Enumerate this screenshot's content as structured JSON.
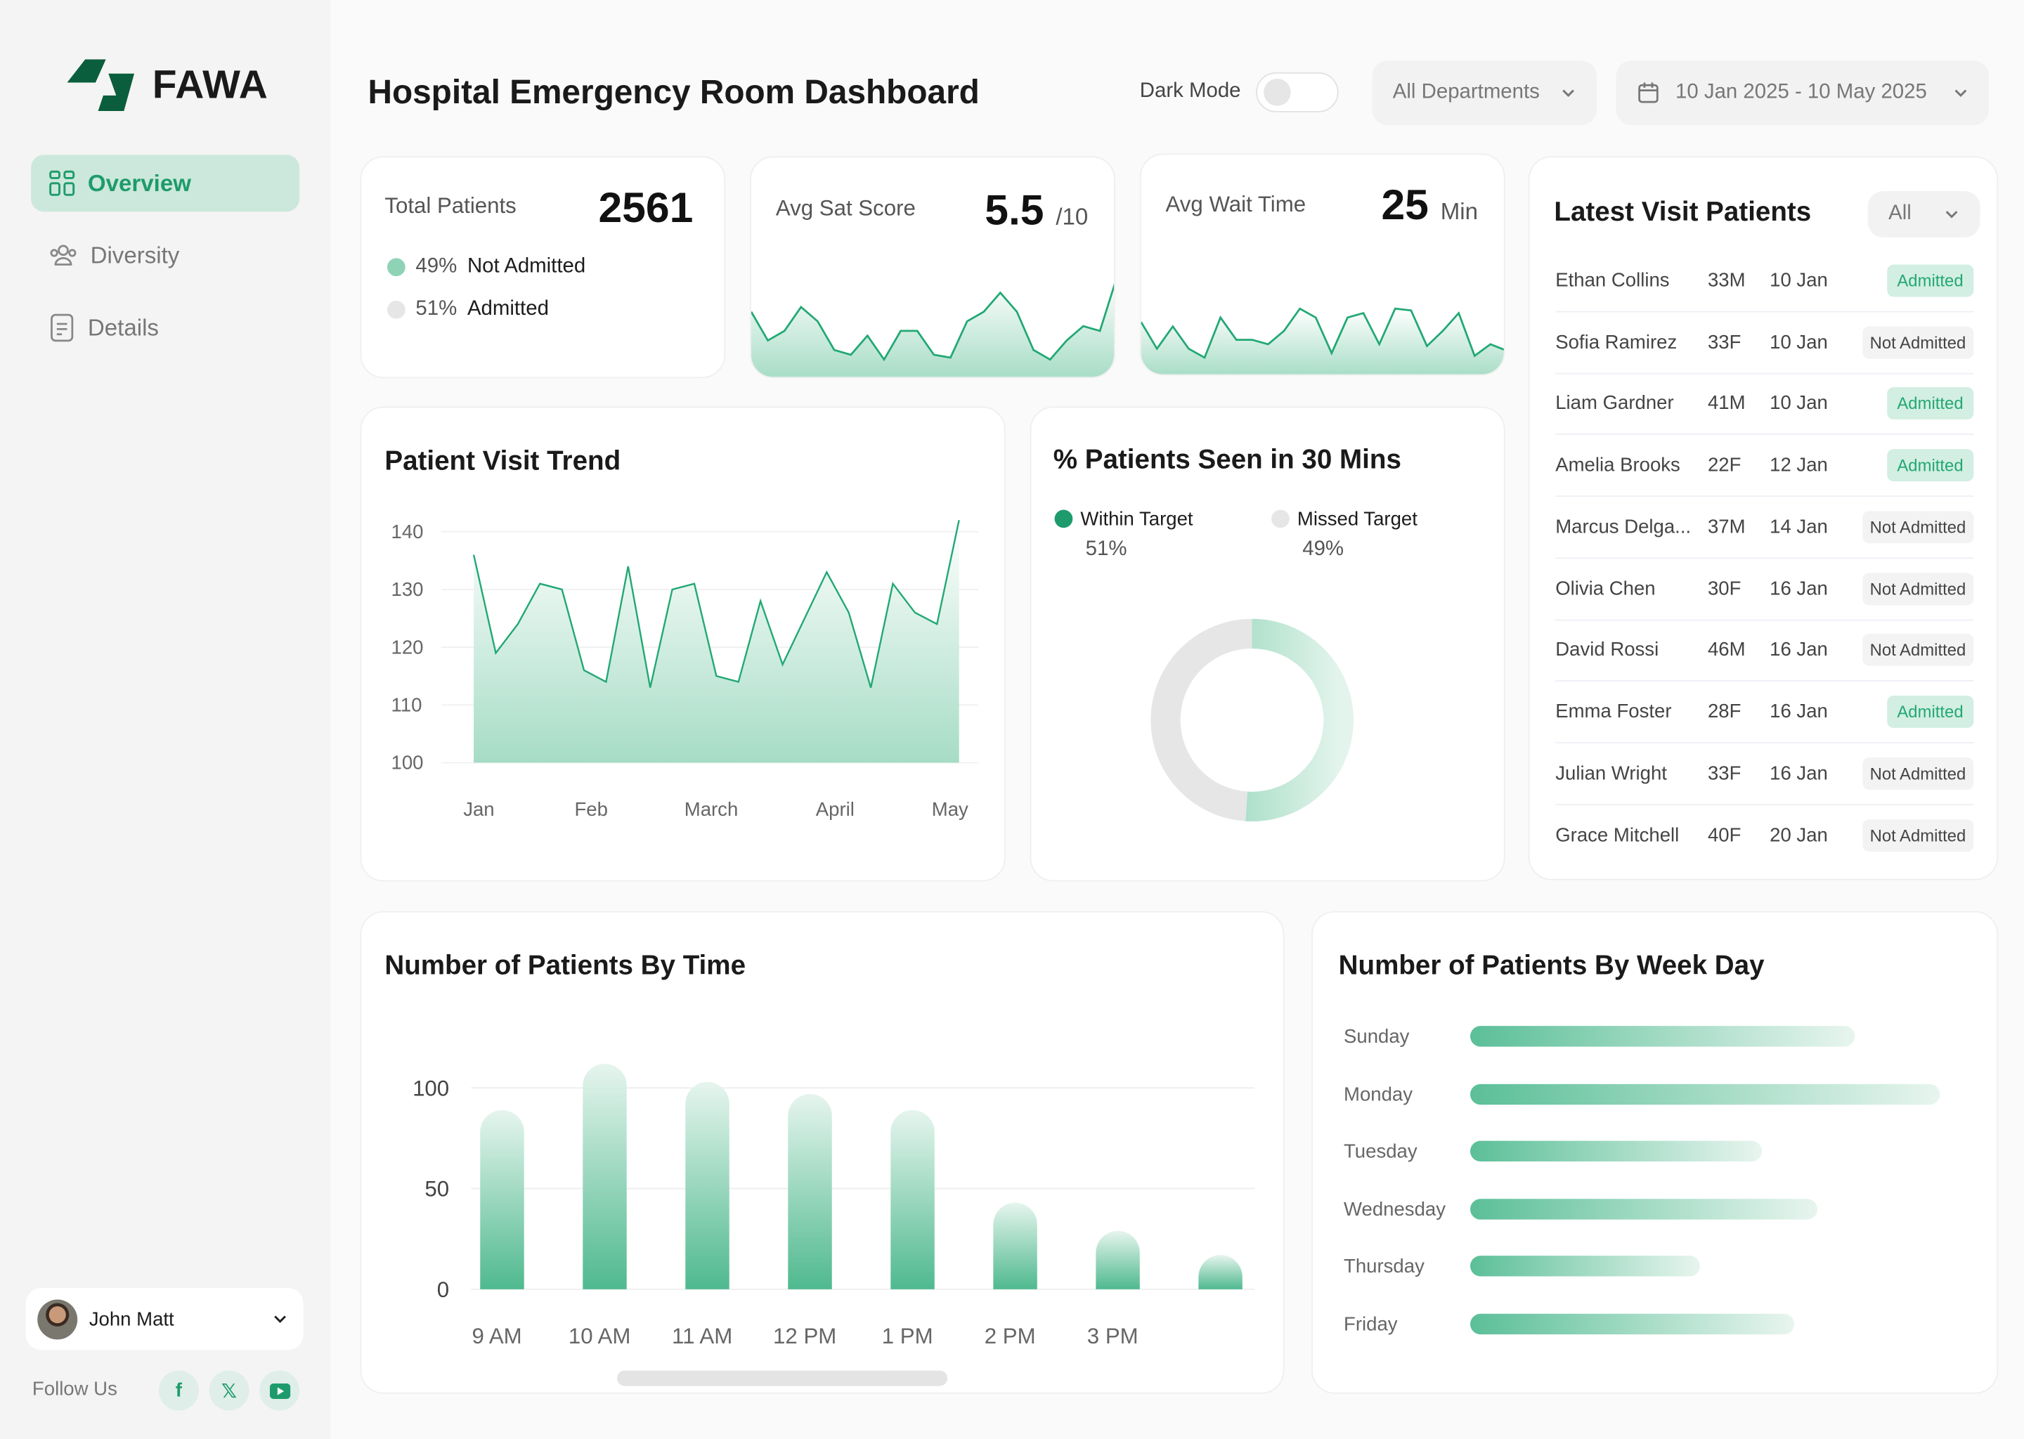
{
  "brand": {
    "name": "FAWA",
    "color": "#0b5e3d"
  },
  "accent": "#1e9b6d",
  "sidebar": {
    "items": [
      {
        "label": "Overview",
        "icon": "grid-icon",
        "active": true
      },
      {
        "label": "Diversity",
        "icon": "users-icon"
      },
      {
        "label": "Details",
        "icon": "document-icon"
      }
    ],
    "user": {
      "name": "John Matt"
    },
    "follow_label": "Follow Us",
    "social": [
      "facebook-icon",
      "x-icon",
      "youtube-icon"
    ]
  },
  "header": {
    "title": "Hospital Emergency Room Dashboard",
    "dark_mode_label": "Dark Mode",
    "dark_mode_on": false,
    "department": "All Departments",
    "date_range": "10 Jan 2025 - 10 May 2025"
  },
  "kpis": {
    "total": {
      "label": "Total Patients",
      "value": "2561",
      "legend": [
        {
          "pct": "49%",
          "label": "Not Admitted"
        },
        {
          "pct": "51%",
          "label": "Admitted"
        }
      ]
    },
    "sat": {
      "label": "Avg Sat Score",
      "value": "5.5",
      "unit": "/10",
      "spark": [
        6,
        3,
        4,
        6.5,
        5,
        2,
        1.5,
        3.5,
        1,
        4,
        4,
        1.5,
        1.2,
        5,
        6,
        8,
        6,
        2,
        1,
        3,
        4.5,
        4,
        9.5
      ]
    },
    "wait": {
      "label": "Avg Wait Time",
      "value": "25",
      "unit": "Min",
      "spark": [
        5,
        2,
        4.5,
        2,
        1,
        5.5,
        3,
        3,
        2.5,
        4,
        6.5,
        5.5,
        1.5,
        5.5,
        6,
        2.5,
        6.5,
        6.3,
        2.3,
        4,
        6,
        1.2,
        2.5,
        1.8
      ]
    }
  },
  "latest": {
    "title": "Latest Visit Patients",
    "filter": "All",
    "rows": [
      {
        "name": "Ethan Collins",
        "age": "33M",
        "date": "10 Jan",
        "status": "Admitted"
      },
      {
        "name": "Sofia Ramirez",
        "age": "33F",
        "date": "10 Jan",
        "status": "Not Admitted"
      },
      {
        "name": "Liam Gardner",
        "age": "41M",
        "date": "10 Jan",
        "status": "Admitted"
      },
      {
        "name": "Amelia Brooks",
        "age": "22F",
        "date": "12 Jan",
        "status": "Admitted"
      },
      {
        "name": "Marcus Delga...",
        "age": "37M",
        "date": "14 Jan",
        "status": "Not Admitted"
      },
      {
        "name": "Olivia Chen",
        "age": "30F",
        "date": "16 Jan",
        "status": "Not Admitted"
      },
      {
        "name": "David Rossi",
        "age": "46M",
        "date": "16 Jan",
        "status": "Not Admitted"
      },
      {
        "name": "Emma Foster",
        "age": "28F",
        "date": "16 Jan",
        "status": "Admitted"
      },
      {
        "name": "Julian Wright",
        "age": "33F",
        "date": "16 Jan",
        "status": "Not Admitted"
      },
      {
        "name": "Grace Mitchell",
        "age": "40F",
        "date": "20 Jan",
        "status": "Not Admitted"
      }
    ]
  },
  "chart_data": [
    {
      "id": "trend",
      "type": "area",
      "title": "Patient Visit Trend",
      "x_ticks": [
        "Jan",
        "Feb",
        "March",
        "April",
        "May"
      ],
      "y_ticks": [
        100,
        110,
        120,
        130,
        140
      ],
      "ylim": [
        100,
        140
      ],
      "values": [
        136,
        119,
        124,
        131,
        130,
        116,
        114,
        134,
        113,
        130,
        131,
        115,
        114,
        128,
        117,
        125,
        133,
        126,
        113,
        131,
        126,
        124,
        142
      ]
    },
    {
      "id": "seen",
      "type": "pie",
      "title": "% Patients Seen in 30 Mins",
      "slices": [
        {
          "label": "Within Target",
          "value": 51,
          "display": "51%",
          "color": "#5bbf98"
        },
        {
          "label": "Missed Target",
          "value": 49,
          "display": "49%",
          "color": "#e6e6e6"
        }
      ]
    },
    {
      "id": "bytime",
      "type": "bar",
      "title": "Number of Patients By Time",
      "categories": [
        "9 AM",
        "10 AM",
        "11 AM",
        "12 PM",
        "1 PM",
        "2 PM",
        "3 PM",
        ""
      ],
      "values": [
        89,
        112,
        103,
        97,
        89,
        43,
        29,
        17
      ],
      "y_ticks": [
        0,
        50,
        100
      ],
      "ylim": [
        0,
        115
      ]
    },
    {
      "id": "byweekday",
      "type": "bar",
      "orientation": "horizontal",
      "title": "Number of Patients By  Week Day",
      "categories": [
        "Sunday",
        "Monday",
        "Tuesday",
        "Wednesday",
        "Thursday",
        "Friday"
      ],
      "values": [
        82,
        100,
        62,
        74,
        49,
        69
      ]
    }
  ]
}
